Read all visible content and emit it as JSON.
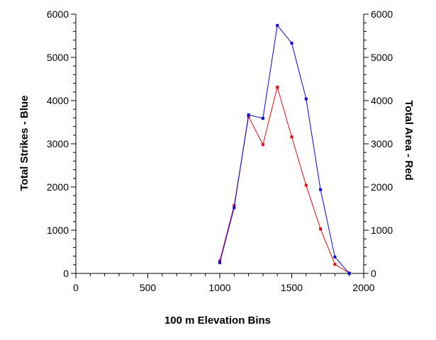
{
  "chart_data": {
    "type": "line",
    "xlabel": "100 m Elevation Bins",
    "ylabel_left": "Total Strikes - Blue",
    "ylabel_right": "Total Area - Red",
    "xlim": [
      0,
      2000
    ],
    "ylim_left": [
      0,
      6000
    ],
    "ylim_right": [
      0,
      6000
    ],
    "x_ticks": [
      0,
      500,
      1000,
      1500,
      2000
    ],
    "y_ticks_left": [
      0,
      1000,
      2000,
      3000,
      4000,
      5000,
      6000
    ],
    "y_ticks_right": [
      0,
      1000,
      2000,
      3000,
      4000,
      5000,
      6000
    ],
    "grid": false,
    "series": [
      {
        "axis": "left",
        "color": "#0000ff",
        "x": [
          1000,
          1100,
          1200,
          1300,
          1400,
          1500,
          1600,
          1700,
          1800,
          1900
        ],
        "values": [
          250,
          1520,
          3670,
          3590,
          5740,
          5330,
          4040,
          1940,
          380,
          0
        ]
      },
      {
        "axis": "right",
        "color": "#ff0000",
        "x": [
          1000,
          1100,
          1200,
          1300,
          1400,
          1500,
          1600,
          1700,
          1800,
          1900
        ],
        "values": [
          290,
          1570,
          3630,
          2980,
          4310,
          3160,
          2040,
          1030,
          210,
          10
        ]
      }
    ]
  }
}
